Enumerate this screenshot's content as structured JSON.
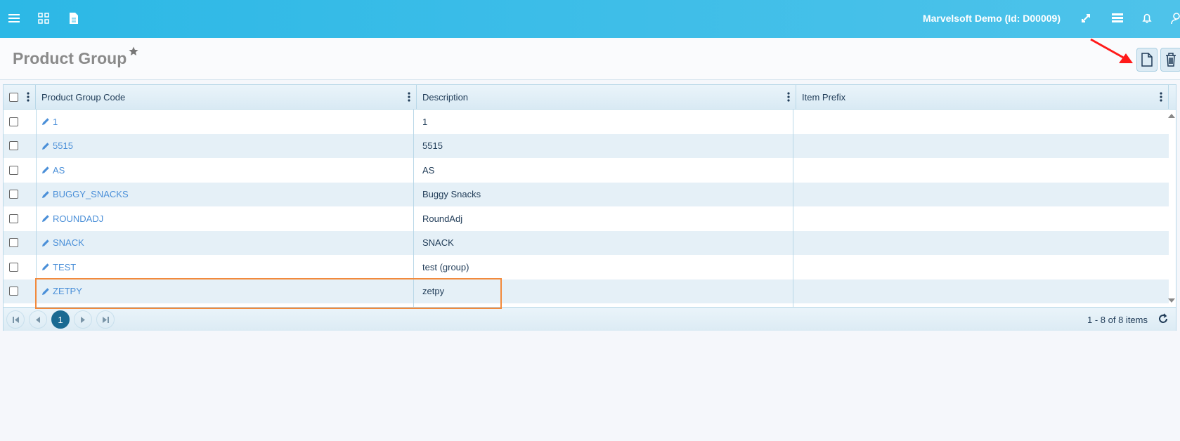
{
  "topbar": {
    "user": "Marvelsoft Demo (Id: D00009)",
    "icons": [
      "menu-icon",
      "apps-grid-icon",
      "document-icon",
      "expand-icon",
      "list-icon",
      "bell-icon",
      "user-icon"
    ]
  },
  "page": {
    "title": "Product Group",
    "actions": [
      "new-document-icon",
      "trash-icon"
    ]
  },
  "grid": {
    "columns": [
      "Product Group Code",
      "Description",
      "Item Prefix"
    ],
    "rows": [
      {
        "code": "1",
        "description": "1",
        "prefix": ""
      },
      {
        "code": "5515",
        "description": "5515",
        "prefix": ""
      },
      {
        "code": "AS",
        "description": "AS",
        "prefix": ""
      },
      {
        "code": "BUGGY_SNACKS",
        "description": "Buggy Snacks",
        "prefix": ""
      },
      {
        "code": "ROUNDADJ",
        "description": "RoundAdj",
        "prefix": ""
      },
      {
        "code": "SNACK",
        "description": "SNACK",
        "prefix": ""
      },
      {
        "code": "TEST",
        "description": "test (group)",
        "prefix": ""
      },
      {
        "code": "ZETPY",
        "description": "zetpy",
        "prefix": ""
      }
    ],
    "pager": {
      "current_page": "1",
      "summary": "1 - 8 of 8 items"
    }
  },
  "colors": {
    "topbar": "#2cb8e6",
    "link": "#4a8fd8",
    "highlight": "#f28a3c",
    "arrow": "#ff1a1a",
    "active_page": "#1b6a92"
  }
}
